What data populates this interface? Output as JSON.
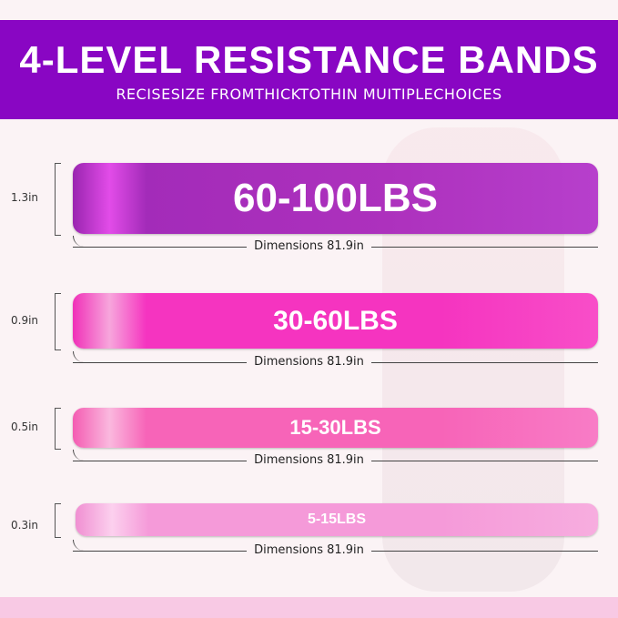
{
  "header": {
    "title": "4-LEVEL RESISTANCE BANDS",
    "subtitle": "RECISESIZE FROMTHICKTOTHIN MUITIPLECHOICES"
  },
  "colors": {
    "banner": "#8906c3",
    "band1": "#a32bb9",
    "band2": "#f534c0",
    "band3": "#f764b8",
    "band4": "#f59ad9"
  },
  "bands": [
    {
      "label": "60-100LBS",
      "thickness": "1.3in",
      "dimensions": "Dimensions 81.9in"
    },
    {
      "label": "30-60LBS",
      "thickness": "0.9in",
      "dimensions": "Dimensions 81.9in"
    },
    {
      "label": "15-30LBS",
      "thickness": "0.5in",
      "dimensions": "Dimensions 81.9in"
    },
    {
      "label": "5-15LBS",
      "thickness": "0.3in",
      "dimensions": "Dimensions 81.9in"
    }
  ]
}
